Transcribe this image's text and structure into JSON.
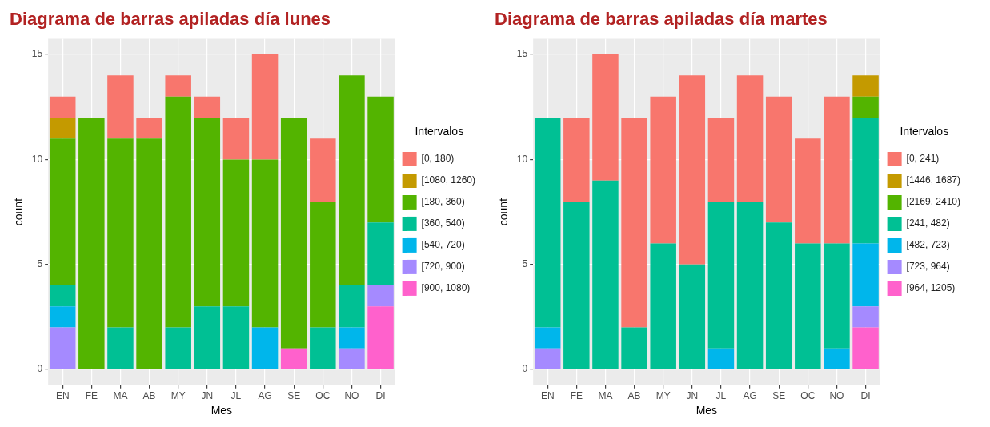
{
  "chart_data": [
    {
      "type": "bar",
      "title": "Diagrama de barras apiladas día lunes",
      "xlabel": "Mes",
      "ylabel": "count",
      "legend_title": "Intervalos",
      "categories": [
        "EN",
        "FE",
        "MA",
        "AB",
        "MY",
        "JN",
        "JL",
        "AG",
        "SE",
        "OC",
        "NO",
        "DI"
      ],
      "stacked": true,
      "ylim": [
        -0.75,
        15.75
      ],
      "yticks": [
        0,
        5,
        10,
        15
      ],
      "grid": true,
      "legend": "right",
      "series": [
        {
          "name": "[900, 1080)",
          "color": "#ff61cc",
          "values": [
            null,
            null,
            null,
            null,
            null,
            null,
            null,
            null,
            1,
            null,
            null,
            3
          ]
        },
        {
          "name": "[720, 900)",
          "color": "#a58aff",
          "values": [
            2,
            null,
            null,
            null,
            null,
            null,
            null,
            null,
            null,
            null,
            1,
            1
          ]
        },
        {
          "name": "[540, 720)",
          "color": "#00b6eb",
          "values": [
            1,
            null,
            null,
            null,
            null,
            null,
            null,
            2,
            null,
            null,
            1,
            null
          ]
        },
        {
          "name": "[360, 540)",
          "color": "#00c094",
          "values": [
            1,
            null,
            2,
            null,
            2,
            3,
            3,
            null,
            null,
            2,
            2,
            3
          ]
        },
        {
          "name": "[180, 360)",
          "color": "#53b400",
          "values": [
            7,
            12,
            9,
            11,
            11,
            9,
            7,
            8,
            11,
            6,
            10,
            6
          ]
        },
        {
          "name": "[1080, 1260)",
          "color": "#c49a00",
          "values": [
            1,
            null,
            null,
            null,
            null,
            null,
            null,
            null,
            null,
            null,
            null,
            null
          ]
        },
        {
          "name": "[0, 180)",
          "color": "#f8766d",
          "values": [
            1,
            null,
            3,
            1,
            1,
            1,
            2,
            5,
            null,
            3,
            null,
            null
          ]
        }
      ]
    },
    {
      "type": "bar",
      "title": "Diagrama de barras apiladas día martes",
      "xlabel": "Mes",
      "ylabel": "count",
      "legend_title": "Intervalos",
      "categories": [
        "EN",
        "FE",
        "MA",
        "AB",
        "MY",
        "JN",
        "JL",
        "AG",
        "SE",
        "OC",
        "NO",
        "DI"
      ],
      "stacked": true,
      "ylim": [
        -0.75,
        15.75
      ],
      "yticks": [
        0,
        5,
        10,
        15
      ],
      "grid": true,
      "legend": "right",
      "series": [
        {
          "name": "[964, 1205)",
          "color": "#ff61cc",
          "values": [
            null,
            null,
            null,
            null,
            null,
            null,
            null,
            null,
            null,
            null,
            null,
            2
          ]
        },
        {
          "name": "[723, 964)",
          "color": "#a58aff",
          "values": [
            1,
            null,
            null,
            null,
            null,
            null,
            null,
            null,
            null,
            null,
            null,
            1
          ]
        },
        {
          "name": "[482, 723)",
          "color": "#00b6eb",
          "values": [
            1,
            null,
            null,
            null,
            null,
            null,
            1,
            null,
            null,
            null,
            1,
            3
          ]
        },
        {
          "name": "[241, 482)",
          "color": "#00c094",
          "values": [
            10,
            8,
            9,
            2,
            6,
            5,
            7,
            8,
            7,
            6,
            5,
            6
          ]
        },
        {
          "name": "[2169, 2410)",
          "color": "#53b400",
          "values": [
            null,
            null,
            null,
            null,
            null,
            null,
            null,
            null,
            null,
            null,
            null,
            1
          ]
        },
        {
          "name": "[1446, 1687)",
          "color": "#c49a00",
          "values": [
            null,
            null,
            null,
            null,
            null,
            null,
            null,
            null,
            null,
            null,
            null,
            1
          ]
        },
        {
          "name": "[0, 241)",
          "color": "#f8766d",
          "values": [
            null,
            4,
            6,
            10,
            7,
            9,
            4,
            6,
            6,
            5,
            7,
            null
          ]
        }
      ]
    }
  ]
}
